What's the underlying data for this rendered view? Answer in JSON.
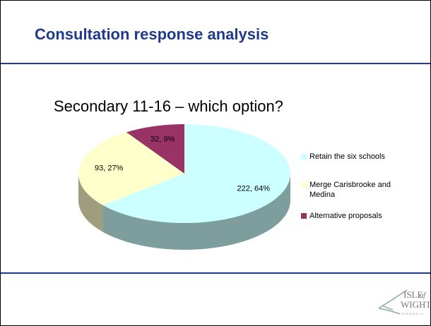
{
  "header": {
    "title": "Consultation response analysis"
  },
  "logo": {
    "line1": "ISLE",
    "of": "of",
    "line2": "WIGHT",
    "line3": "COUNCIL"
  },
  "chart_data": {
    "type": "pie",
    "title": "Secondary 11-16 – which option?",
    "categories": [
      "Retain the six schools",
      "Merge Carisbrooke and Medina",
      "Alternative proposals"
    ],
    "values": [
      222,
      93,
      32
    ],
    "value_labels": [
      "222, 64%",
      "93, 27%",
      "32, 9%"
    ],
    "colors": [
      "#ccffff",
      "#ffffcc",
      "#993366"
    ],
    "legend": "right"
  }
}
